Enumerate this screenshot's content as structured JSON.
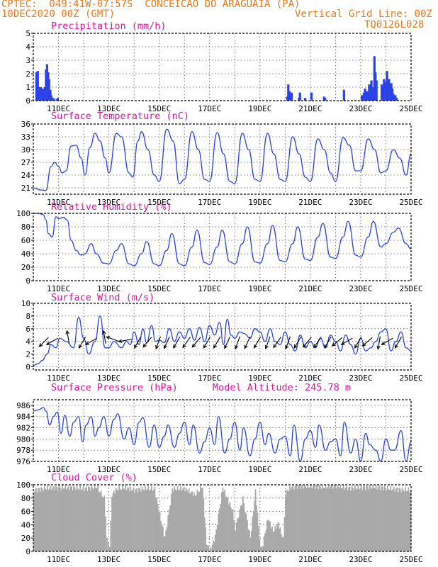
{
  "header": {
    "station": "CPTEC:  049:41W-07:57S  CONCEICAO DO ARAGUAIA (PA)",
    "date": "10DEC2020 00Z (GMT)",
    "grid_note": "Vertical Grid Line: 00Z",
    "code": "TQ0126L028"
  },
  "chart_data": [
    {
      "type": "bar",
      "title": "Precipitation (mm/h)",
      "ylim": [
        0,
        5
      ],
      "yticks": [
        0,
        1,
        2,
        3,
        4,
        5
      ],
      "xticks": [
        "11DEC",
        "13DEC",
        "15DEC",
        "17DEC",
        "19DEC",
        "21DEC",
        "23DEC",
        "25DEC"
      ],
      "bar_color": "#2a43e6",
      "x_day": [
        10.08,
        10.13,
        10.17,
        10.21,
        10.25,
        10.29,
        10.33,
        10.38,
        10.42,
        10.46,
        10.5,
        10.54,
        10.58,
        10.63,
        10.67,
        10.75,
        10.88,
        10.92,
        11.04,
        20.04,
        20.08,
        20.13,
        20.17,
        20.21,
        20.5,
        20.54,
        20.75,
        21.0,
        21.5,
        21.54,
        22.29,
        23.0,
        23.08,
        23.13,
        23.17,
        23.21,
        23.25,
        23.29,
        23.33,
        23.38,
        23.42,
        23.5,
        23.54,
        23.58,
        23.79,
        23.83,
        23.88,
        23.92,
        23.96,
        24.0,
        24.04,
        24.08,
        24.13,
        24.17,
        24.21,
        24.25,
        24.33,
        24.38
      ],
      "values": [
        2.1,
        2.2,
        1.0,
        0.2,
        1.0,
        0.8,
        0.9,
        0.8,
        1.0,
        2.3,
        2.7,
        2.1,
        1.6,
        0.8,
        0.4,
        0.2,
        0.1,
        0.2,
        0.05,
        0.3,
        1.2,
        0.7,
        0.5,
        0.6,
        0.2,
        0.6,
        0.2,
        0.6,
        0.3,
        0.2,
        0.8,
        0.4,
        0.6,
        0.9,
        0.3,
        0.7,
        0.5,
        1.2,
        1.0,
        1.5,
        1.0,
        3.3,
        2.1,
        1.5,
        1.2,
        1.0,
        1.6,
        1.4,
        1.3,
        2.2,
        1.4,
        1.6,
        1.0,
        1.3,
        0.9,
        0.5,
        0.4,
        0.2
      ]
    },
    {
      "type": "line",
      "title": "Surface Temperature (nC)",
      "ylim": [
        19.5,
        36
      ],
      "yticks": [
        21,
        24,
        27,
        30,
        33,
        36
      ],
      "xticks": [
        "11DEC",
        "13DEC",
        "15DEC",
        "17DEC",
        "19DEC",
        "21DEC",
        "23DEC",
        "25DEC"
      ],
      "x_day": [
        10.0,
        10.3,
        10.5,
        10.7,
        10.85,
        11.0,
        11.15,
        11.3,
        11.5,
        11.7,
        11.9,
        12.05,
        12.25,
        12.45,
        12.65,
        12.85,
        13.0,
        13.3,
        13.5,
        13.8,
        13.95,
        14.15,
        14.3,
        14.55,
        14.8,
        15.0,
        15.3,
        15.55,
        15.8,
        16.0,
        16.3,
        16.55,
        16.8,
        17.0,
        17.3,
        17.55,
        17.8,
        18.0,
        18.3,
        18.55,
        18.8,
        19.0,
        19.3,
        19.55,
        19.8,
        20.0,
        20.3,
        20.55,
        20.8,
        21.0,
        21.3,
        21.55,
        21.8,
        22.0,
        22.3,
        22.55,
        22.8,
        23.0,
        23.3,
        23.55,
        23.8,
        24.0,
        24.3,
        24.55,
        24.8,
        25.0
      ],
      "values": [
        21.0,
        20.5,
        20.4,
        26.0,
        27.0,
        26.0,
        24.5,
        25.0,
        30.8,
        31.0,
        28.0,
        24.0,
        30.5,
        33.8,
        32.0,
        28.0,
        24.5,
        33.8,
        33.0,
        24.5,
        23.5,
        32.0,
        34.2,
        30.0,
        24.0,
        22.5,
        34.8,
        32.0,
        22.0,
        23.0,
        34.2,
        30.0,
        23.0,
        22.5,
        34.0,
        29.0,
        22.5,
        22.0,
        33.8,
        30.0,
        23.0,
        22.5,
        33.8,
        29.0,
        23.0,
        22.5,
        33.0,
        29.0,
        23.5,
        22.5,
        32.5,
        30.0,
        24.5,
        22.5,
        32.8,
        31.0,
        25.0,
        25.0,
        32.5,
        30.0,
        24.5,
        25.0,
        30.0,
        28.0,
        24.0,
        29.0
      ]
    },
    {
      "type": "line",
      "title": "Relative Humidity (%)",
      "ylim": [
        0,
        100
      ],
      "yticks": [
        0,
        20,
        40,
        60,
        80,
        100
      ],
      "xticks": [
        "11DEC",
        "13DEC",
        "15DEC",
        "17DEC",
        "19DEC",
        "21DEC",
        "23DEC",
        "25DEC"
      ],
      "x_day": [
        10.0,
        10.2,
        10.4,
        10.5,
        10.6,
        10.75,
        10.9,
        11.0,
        11.2,
        11.35,
        11.5,
        11.7,
        11.9,
        12.05,
        12.3,
        12.5,
        12.8,
        13.0,
        13.3,
        13.5,
        13.8,
        14.0,
        14.3,
        14.5,
        14.8,
        15.0,
        15.3,
        15.5,
        15.8,
        16.0,
        16.3,
        16.5,
        16.8,
        17.0,
        17.3,
        17.5,
        17.8,
        18.0,
        18.3,
        18.5,
        18.8,
        19.0,
        19.3,
        19.5,
        19.8,
        20.0,
        20.3,
        20.5,
        20.8,
        21.0,
        21.3,
        21.5,
        21.8,
        22.0,
        22.3,
        22.5,
        22.8,
        23.0,
        23.3,
        23.5,
        23.8,
        24.0,
        24.3,
        24.5,
        24.8,
        25.0
      ],
      "values": [
        100,
        100,
        98,
        90,
        70,
        65,
        95,
        92,
        94,
        90,
        60,
        45,
        38,
        40,
        55,
        40,
        26,
        25,
        45,
        55,
        25,
        22,
        40,
        58,
        25,
        22,
        45,
        70,
        25,
        22,
        50,
        75,
        27,
        24,
        50,
        75,
        28,
        25,
        55,
        80,
        28,
        26,
        55,
        82,
        30,
        28,
        55,
        80,
        32,
        30,
        65,
        85,
        35,
        33,
        65,
        88,
        38,
        35,
        65,
        88,
        50,
        55,
        72,
        78,
        55,
        47
      ]
    },
    {
      "type": "line",
      "title": "Surface Wind (m/s)",
      "ylim": [
        -0.5,
        10
      ],
      "yticks": [
        0,
        2,
        4,
        6,
        8,
        10
      ],
      "xticks": [
        "11DEC",
        "13DEC",
        "15DEC",
        "17DEC",
        "19DEC",
        "21DEC",
        "23DEC",
        "25DEC"
      ],
      "x_day": [
        10.0,
        10.2,
        10.35,
        10.55,
        10.7,
        10.9,
        11.05,
        11.3,
        11.6,
        11.8,
        12.0,
        12.2,
        12.45,
        12.65,
        12.85,
        13.0,
        13.2,
        13.5,
        13.7,
        13.85,
        14.0,
        14.2,
        14.35,
        14.5,
        14.7,
        14.85,
        15.0,
        15.2,
        15.4,
        15.6,
        15.8,
        16.0,
        16.2,
        16.4,
        16.6,
        16.8,
        17.0,
        17.2,
        17.4,
        17.55,
        17.7,
        17.85,
        18.0,
        18.2,
        18.4,
        18.6,
        18.8,
        19.0,
        19.2,
        19.4,
        19.6,
        19.8,
        20.0,
        20.2,
        20.4,
        20.6,
        20.8,
        21.0,
        21.2,
        21.4,
        21.6,
        21.8,
        22.0,
        22.2,
        22.4,
        22.6,
        22.8,
        23.0,
        23.2,
        23.4,
        23.6,
        23.8,
        24.0,
        24.2,
        24.4,
        24.6,
        24.8,
        25.0
      ],
      "values": [
        0.2,
        0.5,
        1.0,
        2.0,
        3.5,
        3.0,
        4.5,
        4.0,
        3.0,
        7.8,
        4.5,
        2.0,
        4.0,
        8.0,
        3.0,
        3.0,
        4.0,
        3.0,
        4.0,
        3.5,
        5.5,
        3.5,
        6.0,
        3.8,
        6.5,
        4.0,
        4.2,
        3.8,
        6.0,
        4.0,
        5.5,
        4.5,
        6.0,
        4.2,
        6.2,
        4.0,
        6.5,
        5.0,
        7.0,
        3.5,
        7.5,
        5.0,
        4.5,
        5.5,
        5.2,
        4.5,
        6.0,
        5.5,
        4.0,
        6.0,
        4.0,
        3.5,
        5.5,
        3.5,
        2.5,
        5.0,
        3.0,
        4.0,
        3.0,
        4.5,
        3.0,
        5.0,
        4.0,
        2.5,
        5.0,
        3.5,
        2.0,
        4.5,
        2.5,
        3.0,
        4.0,
        5.5,
        6.0,
        2.5,
        4.0,
        5.5,
        3.0,
        2.5
      ],
      "arrows_day": [
        10.5,
        10.85,
        11.4,
        12.0,
        12.4,
        12.85,
        13.25,
        13.75,
        14.2,
        14.6,
        15.0,
        15.35,
        15.75,
        16.15,
        16.55,
        16.95,
        17.35,
        17.75,
        18.15,
        18.55,
        18.95,
        19.35,
        19.75,
        20.15,
        20.55,
        20.95,
        21.35,
        21.75,
        22.15,
        22.55,
        22.95,
        23.35,
        23.75,
        24.15,
        24.55
      ],
      "arrows_angle": [
        45,
        30,
        -80,
        60,
        30,
        -80,
        -20,
        10,
        60,
        50,
        70,
        65,
        60,
        55,
        50,
        60,
        60,
        65,
        70,
        65,
        60,
        70,
        55,
        70,
        60,
        50,
        55,
        60,
        40,
        30,
        60,
        40,
        80,
        30,
        60
      ]
    },
    {
      "type": "line",
      "title": "Surface Pressure (hPa)",
      "subtitle": "Model Altitude: 245.78 m",
      "ylim": [
        976,
        987
      ],
      "yticks": [
        976,
        978,
        980,
        982,
        984,
        986
      ],
      "xticks": [
        "11DEC",
        "13DEC",
        "15DEC",
        "17DEC",
        "19DEC",
        "21DEC",
        "23DEC",
        "25DEC"
      ],
      "x_day": [
        10.0,
        10.2,
        10.4,
        10.5,
        10.65,
        10.8,
        10.95,
        11.1,
        11.25,
        11.45,
        11.6,
        11.8,
        11.95,
        12.1,
        12.3,
        12.45,
        12.6,
        12.8,
        13.0,
        13.2,
        13.35,
        13.6,
        13.8,
        14.0,
        14.2,
        14.35,
        14.6,
        14.8,
        15.0,
        15.2,
        15.35,
        15.6,
        15.8,
        16.0,
        16.2,
        16.35,
        16.6,
        16.8,
        17.0,
        17.2,
        17.35,
        17.6,
        17.8,
        18.0,
        18.2,
        18.35,
        18.6,
        18.8,
        19.0,
        19.2,
        19.35,
        19.6,
        19.8,
        20.0,
        20.2,
        20.35,
        20.6,
        20.8,
        21.0,
        21.2,
        21.35,
        21.6,
        21.8,
        22.0,
        22.2,
        22.35,
        22.6,
        22.8,
        23.0,
        23.2,
        23.35,
        23.6,
        23.8,
        24.0,
        24.2,
        24.35,
        24.6,
        24.8,
        25.0
      ],
      "values": [
        985.0,
        985.2,
        985.6,
        985.0,
        982.5,
        984.0,
        984.8,
        981.0,
        984.2,
        980.5,
        983.0,
        984.0,
        979.5,
        982.5,
        984.0,
        980.5,
        982.0,
        984.0,
        980.5,
        983.5,
        984.5,
        980.0,
        982.0,
        979.0,
        983.0,
        983.8,
        978.5,
        982.5,
        978.5,
        980.5,
        982.5,
        978.5,
        981.0,
        983.0,
        979.0,
        982.5,
        977.5,
        979.5,
        982.0,
        979.0,
        984.0,
        977.5,
        980.0,
        983.0,
        978.0,
        982.0,
        977.0,
        980.0,
        983.0,
        979.0,
        981.0,
        977.5,
        980.0,
        980.5,
        977.0,
        982.5,
        976.0,
        980.0,
        981.5,
        978.5,
        982.5,
        978.0,
        979.5,
        980.0,
        977.0,
        983.0,
        977.5,
        980.0,
        976.0,
        981.0,
        979.0,
        978.0,
        976.0,
        980.0,
        978.0,
        978.0,
        981.5,
        976.0,
        979.5
      ]
    },
    {
      "type": "bar",
      "title": "Cloud Cover (%)",
      "ylim": [
        0,
        100
      ],
      "yticks": [
        0,
        20,
        40,
        60,
        80,
        100
      ],
      "xticks": [
        "11DEC",
        "13DEC",
        "15DEC",
        "17DEC",
        "19DEC",
        "21DEC",
        "23DEC",
        "25DEC"
      ],
      "bar_color": "#a9a9a9",
      "x_day": [
        10.0,
        10.5,
        11.0,
        11.5,
        12.0,
        12.5,
        12.8,
        12.9,
        13.0,
        13.1,
        13.3,
        13.6,
        14.0,
        14.5,
        14.8,
        15.0,
        15.2,
        15.5,
        16.0,
        16.4,
        16.7,
        16.85,
        17.0,
        17.2,
        17.5,
        17.9,
        18.0,
        18.3,
        18.6,
        18.8,
        19.0,
        19.1,
        19.3,
        19.5,
        19.7,
        19.9,
        20.0,
        20.2,
        20.5,
        21.0,
        21.5,
        22.0,
        22.5,
        23.0,
        23.5,
        24.0,
        24.5,
        25.0
      ],
      "values": [
        92,
        95,
        96,
        96,
        94,
        97,
        80,
        25,
        3,
        85,
        94,
        96,
        92,
        95,
        93,
        55,
        20,
        94,
        94,
        85,
        98,
        12,
        2,
        22,
        96,
        60,
        35,
        80,
        20,
        90,
        3,
        12,
        50,
        30,
        42,
        18,
        88,
        96,
        98,
        98,
        97,
        98,
        95,
        96,
        97,
        95,
        93,
        92
      ]
    }
  ]
}
